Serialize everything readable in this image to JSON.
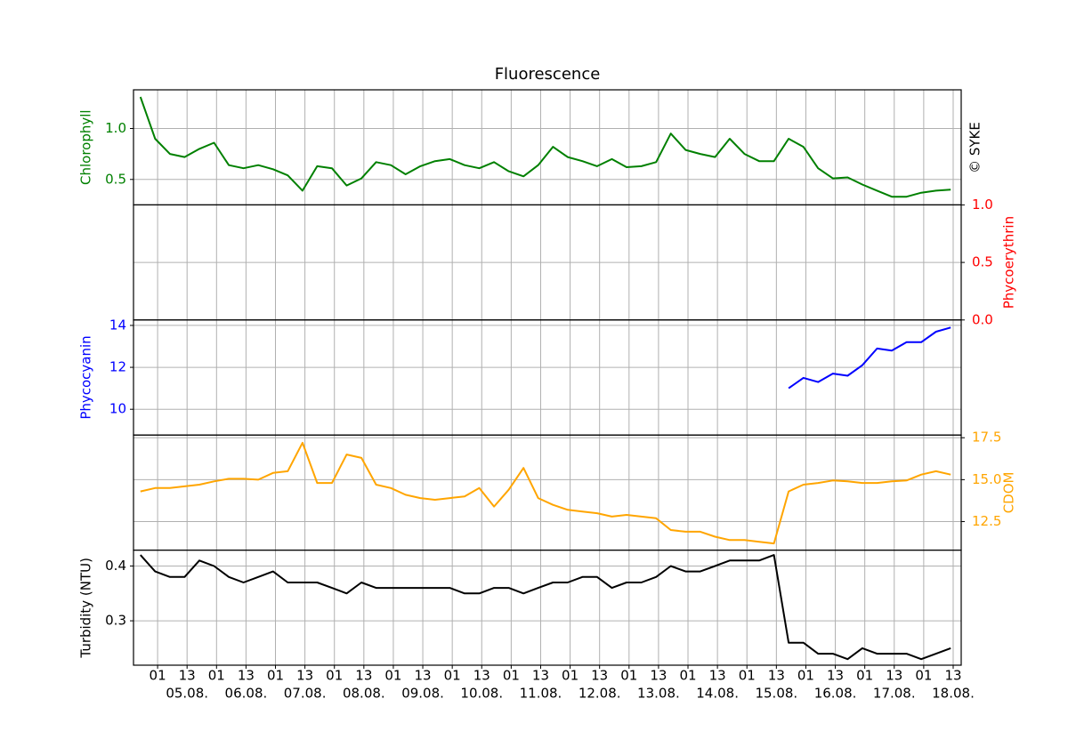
{
  "chart_data": {
    "type": "line",
    "title": "Fluorescence",
    "copyright": "© SYKE",
    "grid": true,
    "x": [
      "04.08. 18:00",
      "05.08. 00:00",
      "05.08. 06:00",
      "05.08. 12:00",
      "05.08. 18:00",
      "06.08. 00:00",
      "06.08. 06:00",
      "06.08. 12:00",
      "06.08. 18:00",
      "07.08. 00:00",
      "07.08. 06:00",
      "07.08. 12:00",
      "07.08. 18:00",
      "08.08. 00:00",
      "08.08. 06:00",
      "08.08. 12:00",
      "08.08. 18:00",
      "09.08. 00:00",
      "09.08. 06:00",
      "09.08. 12:00",
      "09.08. 18:00",
      "10.08. 00:00",
      "10.08. 06:00",
      "10.08. 12:00",
      "10.08. 18:00",
      "11.08. 00:00",
      "11.08. 06:00",
      "11.08. 12:00",
      "11.08. 18:00",
      "12.08. 00:00",
      "12.08. 06:00",
      "12.08. 12:00",
      "12.08. 18:00",
      "13.08. 00:00",
      "13.08. 06:00",
      "13.08. 12:00",
      "13.08. 18:00",
      "14.08. 00:00",
      "14.08. 06:00",
      "14.08. 12:00",
      "14.08. 18:00",
      "15.08. 00:00",
      "15.08. 06:00",
      "15.08. 12:00",
      "15.08. 18:00",
      "16.08. 00:00",
      "16.08. 06:00",
      "16.08. 12:00",
      "16.08. 18:00",
      "17.08. 00:00",
      "17.08. 06:00",
      "17.08. 12:00",
      "17.08. 18:00",
      "18.08. 00:00",
      "18.08. 06:00",
      "18.08. 12:00"
    ],
    "xlim": [
      "04.08. 15:11",
      "18.08. 16:16"
    ],
    "xticks": [
      {
        "value": "05.08. 01:00",
        "label": "01"
      },
      {
        "value": "05.08. 13:00",
        "label": "13"
      },
      {
        "value": "06.08. 01:00",
        "label": "01"
      },
      {
        "value": "06.08. 13:00",
        "label": "13"
      },
      {
        "value": "07.08. 01:00",
        "label": "01"
      },
      {
        "value": "07.08. 13:00",
        "label": "13"
      },
      {
        "value": "08.08. 01:00",
        "label": "01"
      },
      {
        "value": "08.08. 13:00",
        "label": "13"
      },
      {
        "value": "09.08. 01:00",
        "label": "01"
      },
      {
        "value": "09.08. 13:00",
        "label": "13"
      },
      {
        "value": "10.08. 01:00",
        "label": "01"
      },
      {
        "value": "10.08. 13:00",
        "label": "13"
      },
      {
        "value": "11.08. 01:00",
        "label": "01"
      },
      {
        "value": "11.08. 13:00",
        "label": "13"
      },
      {
        "value": "12.08. 01:00",
        "label": "01"
      },
      {
        "value": "12.08. 13:00",
        "label": "13"
      },
      {
        "value": "13.08. 01:00",
        "label": "01"
      },
      {
        "value": "13.08. 13:00",
        "label": "13"
      },
      {
        "value": "14.08. 01:00",
        "label": "01"
      },
      {
        "value": "14.08. 13:00",
        "label": "13"
      },
      {
        "value": "15.08. 01:00",
        "label": "01"
      },
      {
        "value": "15.08. 13:00",
        "label": "13"
      },
      {
        "value": "16.08. 01:00",
        "label": "01"
      },
      {
        "value": "16.08. 13:00",
        "label": "13"
      },
      {
        "value": "17.08. 01:00",
        "label": "01"
      },
      {
        "value": "17.08. 13:00",
        "label": "13"
      },
      {
        "value": "18.08. 01:00",
        "label": "01"
      },
      {
        "value": "18.08. 13:00",
        "label": "13"
      }
    ],
    "date_ticks": [
      {
        "value": "05.08. 13:00",
        "label": "05.08."
      },
      {
        "value": "06.08. 13:00",
        "label": "06.08."
      },
      {
        "value": "07.08. 13:00",
        "label": "07.08."
      },
      {
        "value": "08.08. 13:00",
        "label": "08.08."
      },
      {
        "value": "09.08. 13:00",
        "label": "09.08."
      },
      {
        "value": "10.08. 13:00",
        "label": "10.08."
      },
      {
        "value": "11.08. 13:00",
        "label": "11.08."
      },
      {
        "value": "12.08. 13:00",
        "label": "12.08."
      },
      {
        "value": "13.08. 13:00",
        "label": "13.08."
      },
      {
        "value": "14.08. 13:00",
        "label": "14.08."
      },
      {
        "value": "15.08. 13:00",
        "label": "15.08."
      },
      {
        "value": "16.08. 13:00",
        "label": "16.08."
      },
      {
        "value": "17.08. 13:00",
        "label": "17.08."
      },
      {
        "value": "18.08. 13:00",
        "label": "18.08."
      }
    ],
    "panels": [
      {
        "name": "Chlorophyll",
        "color": "#008000",
        "axis_side": "left",
        "ylim": [
          0.25,
          1.38
        ],
        "yticks": [
          0.5,
          {
            "value": 1,
            "label": "1.0"
          }
        ],
        "values": [
          1.31,
          0.9,
          0.75,
          0.72,
          0.8,
          0.86,
          0.64,
          0.61,
          0.64,
          0.6,
          0.54,
          0.39,
          0.63,
          0.61,
          0.44,
          0.51,
          0.67,
          0.64,
          0.55,
          0.63,
          0.68,
          0.7,
          0.64,
          0.61,
          0.67,
          0.58,
          0.53,
          0.64,
          0.82,
          0.72,
          0.68,
          0.63,
          0.7,
          0.62,
          0.63,
          0.67,
          0.95,
          0.79,
          0.75,
          0.72,
          0.9,
          0.75,
          0.68,
          0.68,
          0.9,
          0.82,
          0.61,
          0.51,
          0.52,
          0.45,
          0.39,
          0.33,
          0.33,
          0.37,
          0.39,
          0.4
        ]
      },
      {
        "name": "Phycoerythrin",
        "color": "#ff0000",
        "axis_side": "right",
        "ylim": [
          0,
          1
        ],
        "yticks": [
          {
            "value": 0,
            "label": "0.0"
          },
          0.5,
          {
            "value": 1,
            "label": "1.0"
          }
        ]
      },
      {
        "name": "Phycocyanin",
        "color": "#0000ff",
        "axis_side": "left",
        "ylim": [
          8.77,
          14.26
        ],
        "yticks": [
          10,
          12,
          14
        ],
        "values": [
          null,
          null,
          null,
          null,
          null,
          null,
          null,
          null,
          null,
          null,
          null,
          null,
          null,
          null,
          null,
          null,
          null,
          null,
          null,
          null,
          null,
          null,
          null,
          null,
          null,
          null,
          null,
          null,
          null,
          null,
          null,
          null,
          null,
          null,
          null,
          null,
          null,
          null,
          null,
          null,
          null,
          null,
          null,
          null,
          11.0,
          11.5,
          11.3,
          11.7,
          11.6,
          12.1,
          12.9,
          12.8,
          13.2,
          13.2,
          13.7,
          13.9
        ]
      },
      {
        "name": "CDOM",
        "color": "#ffa500",
        "axis_side": "right",
        "ylim": [
          10.8,
          17.66
        ],
        "yticks": [
          12.5,
          {
            "value": 15,
            "label": "15.0"
          },
          17.5
        ],
        "values": [
          14.3,
          14.5,
          14.5,
          14.6,
          14.7,
          14.9,
          15.05,
          15.05,
          15.0,
          15.4,
          15.5,
          17.2,
          14.8,
          14.8,
          16.5,
          16.3,
          14.7,
          14.5,
          14.1,
          13.9,
          13.8,
          13.9,
          14.0,
          14.5,
          13.4,
          14.4,
          15.7,
          13.9,
          13.5,
          13.2,
          13.1,
          13.0,
          12.8,
          12.9,
          12.8,
          12.7,
          12.0,
          11.9,
          11.9,
          11.6,
          11.4,
          11.4,
          11.3,
          11.2,
          14.3,
          14.7,
          14.8,
          14.95,
          14.9,
          14.8,
          14.8,
          14.9,
          14.95,
          15.3,
          15.5,
          15.3
        ]
      },
      {
        "name": "Turbidity (NTU)",
        "color": "#000000",
        "axis_side": "left",
        "ylim": [
          0.219,
          0.429
        ],
        "yticks": [
          0.3,
          0.4
        ],
        "values": [
          0.42,
          0.39,
          0.38,
          0.38,
          0.41,
          0.4,
          0.38,
          0.37,
          0.38,
          0.39,
          0.37,
          0.37,
          0.37,
          0.36,
          0.35,
          0.37,
          0.36,
          0.36,
          0.36,
          0.36,
          0.36,
          0.36,
          0.35,
          0.35,
          0.36,
          0.36,
          0.35,
          0.36,
          0.37,
          0.37,
          0.38,
          0.38,
          0.36,
          0.37,
          0.37,
          0.38,
          0.4,
          0.39,
          0.39,
          0.4,
          0.41,
          0.41,
          0.41,
          0.42,
          0.26,
          0.26,
          0.24,
          0.24,
          0.23,
          0.25,
          0.24,
          0.24,
          0.24,
          0.23,
          0.24,
          0.25
        ]
      }
    ]
  }
}
